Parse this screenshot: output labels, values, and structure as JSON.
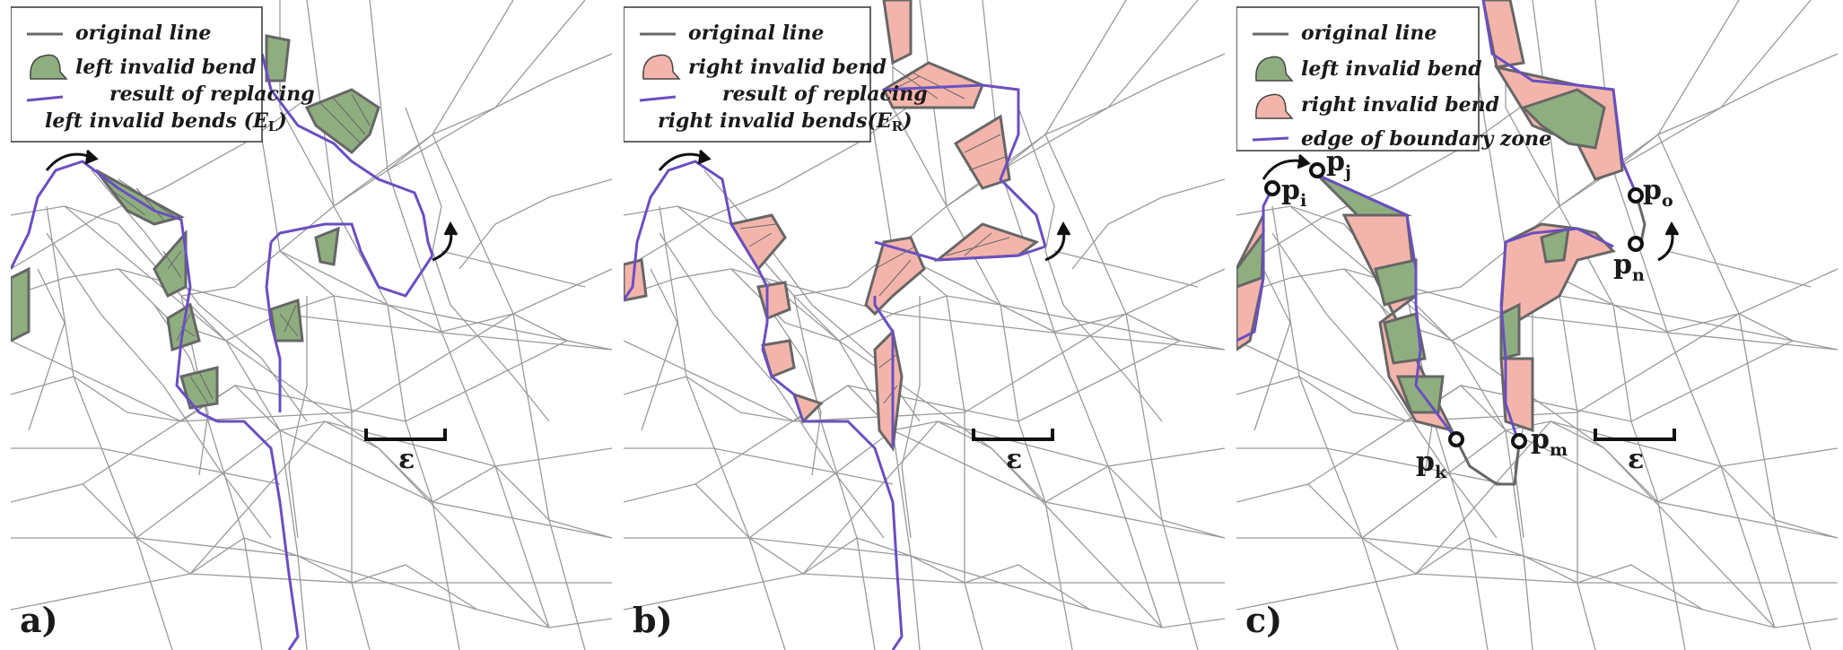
{
  "colors": {
    "green_bend": "#8fae80",
    "red_bend": "#f3b5ab",
    "purple_line": "#6a4fc0",
    "original_line": "#666666",
    "triangulation": "#9a9a9a"
  },
  "panels": [
    {
      "label": "a)",
      "epsilon": "ε",
      "legend": {
        "original": "original line",
        "bend": "left invalid bend",
        "result_line1": "result of replacing",
        "result_line2": "left invalid bends (E",
        "result_sub": "L",
        "result_close": ")"
      }
    },
    {
      "label": "b)",
      "epsilon": "ε",
      "legend": {
        "original": "original line",
        "bend": "right invalid bend",
        "result_line1": "result of replacing",
        "result_line2": "right invalid bends(E",
        "result_sub": "R",
        "result_close": ")"
      }
    },
    {
      "label": "c)",
      "epsilon": "ε",
      "legend": {
        "original": "original line",
        "left_bend": "left invalid bend",
        "right_bend": "right invalid bend",
        "edge": "edge of boundary zone"
      },
      "points": {
        "p": "p",
        "i": "i",
        "j": "j",
        "k": "k",
        "m": "m",
        "n": "n",
        "o": "o"
      }
    }
  ]
}
